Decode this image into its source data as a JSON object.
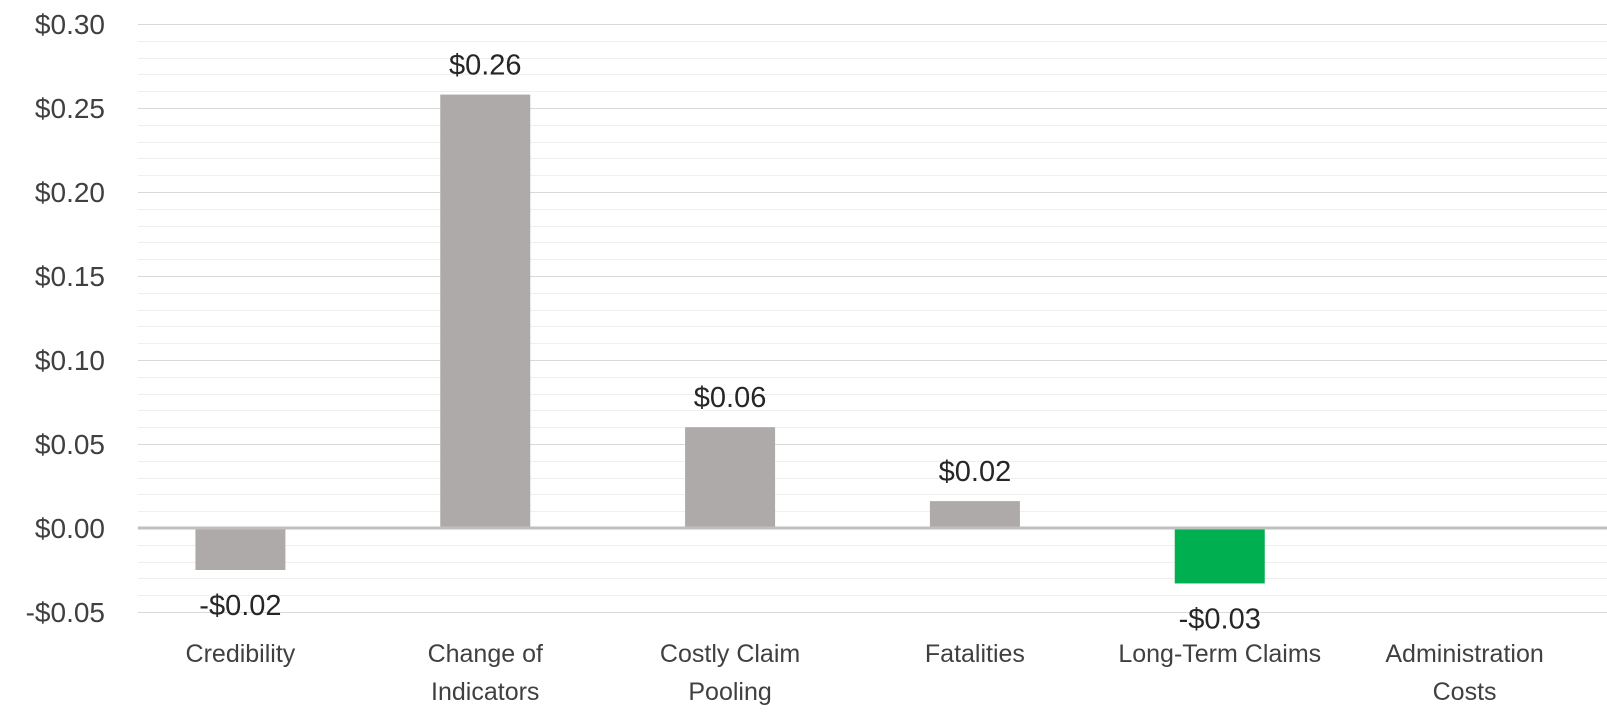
{
  "chart_data": {
    "type": "bar",
    "title": "",
    "xlabel": "",
    "ylabel": "",
    "ylim": [
      -0.05,
      0.3
    ],
    "yticks": [
      -0.05,
      0.0,
      0.05,
      0.1,
      0.15,
      0.2,
      0.25,
      0.3
    ],
    "ytick_labels": [
      "-$0.05",
      "$0.00",
      "$0.05",
      "$0.10",
      "$0.15",
      "$0.20",
      "$0.25",
      "$0.30"
    ],
    "grid": true,
    "categories": [
      [
        "Credibility"
      ],
      [
        "Change of",
        "Indicators"
      ],
      [
        "Costly Claim",
        "Pooling"
      ],
      [
        "Fatalities"
      ],
      [
        "Long-Term Claims"
      ],
      [
        "Administration",
        "Costs"
      ]
    ],
    "values": [
      -0.025,
      0.258,
      0.06,
      0.016,
      -0.033,
      null
    ],
    "data_labels": [
      "-$0.02",
      "$0.26",
      "$0.06",
      "$0.02",
      "-$0.03",
      ""
    ],
    "colors": [
      "#AEAAAA",
      "#AEAAAA",
      "#AEAAAA",
      "#AEAAAA",
      "#00B050",
      "#AEAAAA"
    ],
    "gridline_color": "#D9D9D9",
    "minor_gridline_color": "#EFEFEF",
    "zero_line_color": "#BFBFBF"
  }
}
